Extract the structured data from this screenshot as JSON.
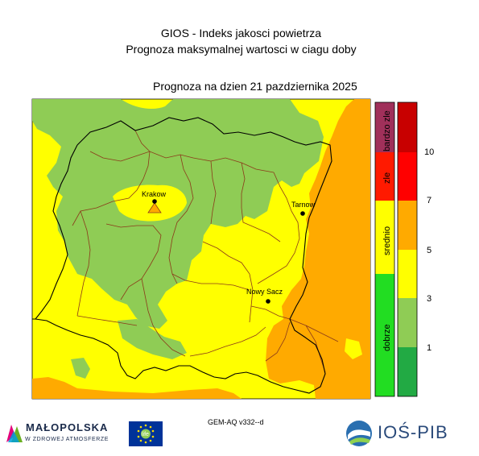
{
  "header": {
    "title_line1": "GIOS - Indeks jakosci powietrza",
    "title_line2": "Prognoza maksymalnej wartosci w ciagu doby",
    "forecast_date": "Prognoza na dzien  21 pazdziernika 2025"
  },
  "cities": [
    {
      "name": "Krakow",
      "marker": "triangle-warning"
    },
    {
      "name": "Tarnow",
      "marker": "dot"
    },
    {
      "name": "Nowy Sacz",
      "marker": "dot"
    }
  ],
  "legend": {
    "categories": [
      {
        "label": "bardzo zle",
        "color": "#a0305a"
      },
      {
        "label": "zle",
        "color": "#ff1a00"
      },
      {
        "label": "srednio",
        "color": "#ffff00"
      },
      {
        "label": "dobrze",
        "color": "#22dd22"
      }
    ],
    "bands": [
      {
        "color": "#c80000"
      },
      {
        "color": "#ff0000"
      },
      {
        "color": "#ffaa00"
      },
      {
        "color": "#ffff00"
      },
      {
        "color": "#8fcc55"
      },
      {
        "color": "#22aa44"
      }
    ],
    "tick_labels": [
      "10",
      "7",
      "5",
      "3",
      "1"
    ]
  },
  "map_colors": {
    "good": "#8fcc55",
    "moderate": "#ffff00",
    "orange": "#ffaa00",
    "boundary": "#8b3a1a",
    "outline": "#000000"
  },
  "footer": {
    "model_label": "GEM-AQ v332--d",
    "malopolska_name": "MAŁOPOLSKA",
    "malopolska_tagline": "W ZDROWEJ ATMOSFERZE",
    "eu_flag_text": "life",
    "ios_name": "IOŚ-PIB"
  }
}
